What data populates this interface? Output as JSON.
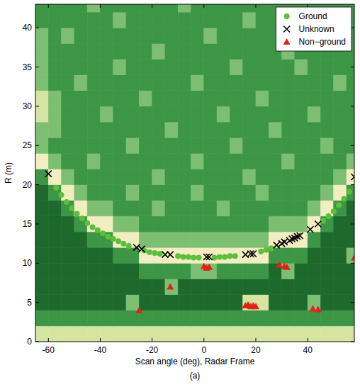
{
  "chart_data": {
    "type": "scatter",
    "x_label": "Scan angle (deg), Radar Frame",
    "y_label": "R (m)",
    "caption": "(a)",
    "xlim": [
      -65,
      58
    ],
    "ylim": [
      0,
      43
    ],
    "xticks": [
      -60,
      -40,
      -20,
      0,
      20,
      40
    ],
    "yticks": [
      0,
      5,
      10,
      15,
      20,
      25,
      30,
      35,
      40
    ],
    "grid": false,
    "legend": "upper right",
    "heatmap": {
      "x_edges": [
        -65,
        -60,
        -55,
        -50,
        -45,
        -40,
        -35,
        -30,
        -25,
        -20,
        -15,
        -10,
        -5,
        0,
        5,
        10,
        15,
        20,
        25,
        30,
        35,
        40,
        45,
        50,
        55,
        60
      ],
      "y_edges": [
        0,
        2,
        4,
        6,
        8,
        10,
        12,
        14,
        16,
        18,
        20,
        22,
        24,
        26,
        28,
        30,
        32,
        34,
        36,
        38,
        40,
        42,
        44
      ],
      "colors": [
        "#1e6a2c",
        "#3d9646",
        "#7dbf72",
        "#d6e4a2",
        "#f3edc2"
      ],
      "cells": [
        [
          3,
          3,
          3,
          3,
          3,
          3,
          3,
          3,
          3,
          3,
          3,
          3,
          3,
          3,
          3,
          3,
          3,
          3,
          3,
          3,
          3,
          3,
          3,
          3,
          3
        ],
        [
          1,
          1,
          1,
          1,
          1,
          1,
          1,
          1,
          1,
          1,
          1,
          1,
          1,
          1,
          1,
          1,
          1,
          1,
          1,
          1,
          1,
          1,
          1,
          1,
          1
        ],
        [
          0,
          0,
          0,
          0,
          0,
          0,
          0,
          2,
          0,
          0,
          0,
          0,
          0,
          0,
          0,
          0,
          3,
          3,
          0,
          0,
          0,
          2,
          0,
          0,
          0
        ],
        [
          0,
          0,
          0,
          0,
          0,
          0,
          0,
          0,
          0,
          0,
          2,
          0,
          0,
          0,
          0,
          0,
          0,
          0,
          0,
          0,
          0,
          0,
          0,
          0,
          0
        ],
        [
          0,
          0,
          0,
          0,
          0,
          0,
          0,
          0,
          1,
          1,
          1,
          1,
          2,
          2,
          1,
          1,
          1,
          1,
          0,
          2,
          0,
          0,
          0,
          0,
          0
        ],
        [
          0,
          0,
          0,
          0,
          0,
          0,
          1,
          1,
          4,
          4,
          4,
          4,
          4,
          4,
          4,
          4,
          4,
          4,
          1,
          1,
          1,
          0,
          0,
          0,
          2
        ],
        [
          0,
          0,
          0,
          0,
          1,
          1,
          4,
          4,
          2,
          2,
          2,
          2,
          2,
          2,
          2,
          2,
          2,
          2,
          4,
          4,
          4,
          1,
          0,
          0,
          0
        ],
        [
          0,
          0,
          0,
          1,
          4,
          4,
          2,
          2,
          1,
          1,
          1,
          1,
          1,
          1,
          1,
          1,
          1,
          1,
          2,
          2,
          2,
          4,
          1,
          0,
          0
        ],
        [
          0,
          0,
          1,
          4,
          2,
          2,
          1,
          1,
          1,
          2,
          1,
          1,
          1,
          1,
          2,
          1,
          1,
          1,
          1,
          1,
          1,
          2,
          4,
          1,
          0
        ],
        [
          0,
          1,
          4,
          2,
          1,
          1,
          1,
          2,
          1,
          1,
          1,
          1,
          2,
          1,
          1,
          1,
          1,
          2,
          1,
          1,
          1,
          1,
          2,
          4,
          1
        ],
        [
          1,
          4,
          2,
          1,
          1,
          1,
          1,
          1,
          1,
          2,
          1,
          1,
          1,
          1,
          1,
          1,
          2,
          1,
          1,
          1,
          1,
          1,
          1,
          2,
          4
        ],
        [
          4,
          2,
          1,
          1,
          2,
          1,
          1,
          1,
          1,
          1,
          1,
          1,
          2,
          1,
          1,
          1,
          1,
          1,
          1,
          2,
          1,
          1,
          1,
          1,
          2
        ],
        [
          2,
          1,
          1,
          1,
          1,
          1,
          1,
          2,
          1,
          1,
          1,
          1,
          1,
          1,
          1,
          2,
          1,
          1,
          1,
          1,
          1,
          1,
          2,
          1,
          1
        ],
        [
          2,
          2,
          1,
          1,
          1,
          1,
          1,
          1,
          1,
          1,
          2,
          1,
          1,
          1,
          1,
          1,
          1,
          1,
          2,
          1,
          1,
          1,
          1,
          1,
          1
        ],
        [
          3,
          2,
          1,
          1,
          1,
          2,
          1,
          1,
          1,
          1,
          1,
          1,
          1,
          1,
          2,
          1,
          1,
          1,
          1,
          1,
          1,
          2,
          1,
          1,
          1
        ],
        [
          3,
          2,
          1,
          1,
          1,
          1,
          1,
          1,
          2,
          1,
          1,
          1,
          1,
          1,
          1,
          1,
          1,
          2,
          1,
          1,
          1,
          1,
          1,
          1,
          1
        ],
        [
          2,
          1,
          1,
          2,
          1,
          1,
          1,
          1,
          1,
          1,
          1,
          1,
          2,
          1,
          1,
          1,
          1,
          1,
          1,
          1,
          1,
          1,
          1,
          2,
          1
        ],
        [
          2,
          1,
          1,
          1,
          1,
          1,
          2,
          1,
          1,
          1,
          1,
          1,
          1,
          1,
          1,
          2,
          1,
          1,
          1,
          1,
          2,
          1,
          1,
          1,
          1
        ],
        [
          2,
          1,
          1,
          1,
          1,
          1,
          1,
          1,
          1,
          2,
          1,
          1,
          1,
          1,
          1,
          1,
          1,
          1,
          1,
          2,
          1,
          1,
          1,
          1,
          1
        ],
        [
          2,
          1,
          2,
          1,
          1,
          1,
          1,
          1,
          1,
          1,
          1,
          1,
          1,
          2,
          1,
          1,
          1,
          1,
          1,
          1,
          1,
          1,
          2,
          1,
          1
        ],
        [
          1,
          1,
          1,
          1,
          1,
          1,
          2,
          1,
          1,
          1,
          1,
          1,
          1,
          1,
          1,
          1,
          2,
          1,
          1,
          1,
          1,
          1,
          1,
          1,
          1
        ],
        [
          1,
          1,
          1,
          1,
          2,
          1,
          1,
          1,
          1,
          1,
          1,
          2,
          1,
          1,
          1,
          1,
          1,
          1,
          1,
          1,
          1,
          1,
          1,
          1,
          1
        ]
      ]
    },
    "series": [
      {
        "name": "Ground",
        "color": "#5cbf3a",
        "marker": "circle",
        "x": [
          -57,
          -55,
          -53,
          -51,
          -49,
          -47,
          -45,
          -43,
          -41,
          -39,
          -37,
          -35,
          -33,
          -31,
          -29,
          -23,
          -21,
          -19,
          -17,
          -10,
          -8,
          -6,
          -4,
          -2,
          4,
          6,
          8,
          10,
          12,
          22,
          24,
          26,
          46,
          48,
          50,
          52,
          54,
          56
        ],
        "values": [
          19.6,
          18.7,
          17.8,
          17.0,
          16.3,
          15.7,
          15.1,
          14.6,
          14.2,
          13.8,
          13.4,
          13.1,
          12.8,
          12.5,
          12.2,
          11.6,
          11.4,
          11.3,
          11.2,
          10.9,
          10.8,
          10.8,
          10.7,
          10.7,
          10.7,
          10.8,
          10.8,
          10.9,
          10.9,
          11.5,
          11.7,
          11.9,
          15.4,
          16.0,
          16.6,
          17.4,
          18.2,
          19.1
        ]
      },
      {
        "name": "Unknown",
        "color": "#000000",
        "marker": "x",
        "x": [
          -60,
          -26,
          -24,
          -15,
          -13,
          1,
          2,
          16,
          18,
          19,
          28,
          30,
          31,
          33,
          34,
          35,
          36,
          37,
          41,
          44,
          58
        ],
        "values": [
          21.4,
          12.0,
          11.8,
          11.1,
          11.1,
          10.8,
          10.8,
          11.1,
          11.2,
          11.2,
          12.3,
          12.5,
          12.7,
          12.9,
          13.1,
          13.2,
          13.4,
          13.5,
          14.3,
          15.0,
          21.0
        ]
      },
      {
        "name": "Non−ground",
        "color": "#e3201b",
        "marker": "triangle",
        "x": [
          -25,
          -13,
          0,
          1,
          2,
          29,
          31,
          32,
          16,
          17,
          18,
          19,
          20,
          42,
          44,
          58
        ],
        "values": [
          4.0,
          7.0,
          9.6,
          9.4,
          9.5,
          9.8,
          9.6,
          9.5,
          4.6,
          4.7,
          4.5,
          4.6,
          4.5,
          4.2,
          4.1,
          10.7
        ]
      }
    ]
  }
}
